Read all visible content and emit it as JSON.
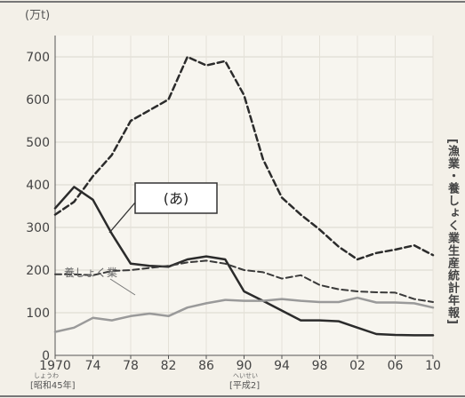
{
  "chart_data": {
    "type": "line",
    "unit_label": "(万t)",
    "x_ticks": [
      "1970",
      "74",
      "78",
      "82",
      "86",
      "90",
      "94",
      "98",
      "02",
      "06",
      "10"
    ],
    "x_ruby_start": "しょうわ",
    "x_era_start": "[昭和45年]",
    "x_ruby_mid": "へいせい",
    "x_era_mid": "[平成2]",
    "y_ticks": [
      "0",
      "100",
      "200",
      "300",
      "400",
      "500",
      "600",
      "700"
    ],
    "ylim": [
      0,
      750
    ],
    "xlim": [
      1970,
      2010
    ],
    "callout_label": "(あ)",
    "aquaculture_label": "養しょく業",
    "source": "[漁業・養しょく業生産統計年報]",
    "series": [
      {
        "style": "dashed",
        "color": "#2b2b2b",
        "width": 2.5,
        "points": [
          [
            1970,
            330
          ],
          [
            1972,
            360
          ],
          [
            1974,
            420
          ],
          [
            1976,
            470
          ],
          [
            1978,
            550
          ],
          [
            1980,
            575
          ],
          [
            1982,
            600
          ],
          [
            1984,
            700
          ],
          [
            1986,
            680
          ],
          [
            1988,
            690
          ],
          [
            1990,
            610
          ],
          [
            1992,
            460
          ],
          [
            1994,
            370
          ],
          [
            1996,
            330
          ],
          [
            1998,
            295
          ],
          [
            2000,
            255
          ],
          [
            2002,
            225
          ],
          [
            2004,
            240
          ],
          [
            2006,
            248
          ],
          [
            2008,
            258
          ],
          [
            2010,
            235
          ]
        ]
      },
      {
        "style": "solid",
        "color": "#2b2b2b",
        "width": 2.5,
        "points": [
          [
            1970,
            345
          ],
          [
            1972,
            395
          ],
          [
            1974,
            365
          ],
          [
            1976,
            285
          ],
          [
            1978,
            215
          ],
          [
            1980,
            210
          ],
          [
            1982,
            208
          ],
          [
            1984,
            225
          ],
          [
            1986,
            232
          ],
          [
            1988,
            225
          ],
          [
            1990,
            150
          ],
          [
            1992,
            128
          ],
          [
            1994,
            105
          ],
          [
            1996,
            82
          ],
          [
            1998,
            82
          ],
          [
            2000,
            80
          ],
          [
            2002,
            65
          ],
          [
            2004,
            50
          ],
          [
            2006,
            48
          ],
          [
            2008,
            47
          ],
          [
            2010,
            47
          ]
        ]
      },
      {
        "style": "dashed",
        "color": "#3a3a3a",
        "width": 2,
        "points": [
          [
            1970,
            190
          ],
          [
            1972,
            190
          ],
          [
            1974,
            188
          ],
          [
            1976,
            198
          ],
          [
            1978,
            200
          ],
          [
            1980,
            205
          ],
          [
            1982,
            210
          ],
          [
            1984,
            218
          ],
          [
            1986,
            222
          ],
          [
            1988,
            215
          ],
          [
            1990,
            200
          ],
          [
            1992,
            195
          ],
          [
            1994,
            180
          ],
          [
            1996,
            188
          ],
          [
            1998,
            165
          ],
          [
            2000,
            155
          ],
          [
            2002,
            150
          ],
          [
            2004,
            148
          ],
          [
            2006,
            147
          ],
          [
            2008,
            132
          ],
          [
            2010,
            125
          ]
        ]
      },
      {
        "style": "solid",
        "color": "#9a9a9a",
        "width": 2.5,
        "points": [
          [
            1970,
            55
          ],
          [
            1972,
            65
          ],
          [
            1974,
            88
          ],
          [
            1976,
            82
          ],
          [
            1978,
            92
          ],
          [
            1980,
            98
          ],
          [
            1982,
            92
          ],
          [
            1984,
            112
          ],
          [
            1986,
            122
          ],
          [
            1988,
            130
          ],
          [
            1990,
            128
          ],
          [
            1992,
            128
          ],
          [
            1994,
            132
          ],
          [
            1996,
            128
          ],
          [
            1998,
            125
          ],
          [
            2000,
            125
          ],
          [
            2002,
            135
          ],
          [
            2004,
            124
          ],
          [
            2006,
            124
          ],
          [
            2008,
            122
          ],
          [
            2010,
            112
          ]
        ]
      }
    ]
  }
}
